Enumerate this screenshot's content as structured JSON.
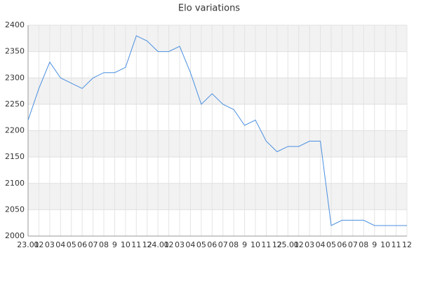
{
  "chart_data": {
    "type": "line",
    "title": "Elo variations",
    "categories": [
      "23.01",
      "02",
      "03",
      "04",
      "05",
      "06",
      "07",
      "08",
      "9",
      "10",
      "11",
      "12",
      "24.01",
      "02",
      "03",
      "04",
      "05",
      "06",
      "07",
      "08",
      "9",
      "10",
      "11",
      "12",
      "25.01",
      "02",
      "03",
      "04",
      "05",
      "06",
      "07",
      "08",
      "9",
      "10",
      "11",
      "12"
    ],
    "series": [
      {
        "name": "Elo",
        "color": "#4a8fe0",
        "values": [
          2220,
          2280,
          2330,
          2300,
          2290,
          2280,
          2300,
          2310,
          2310,
          2320,
          2380,
          2370,
          2350,
          2350,
          2360,
          2310,
          2250,
          2270,
          2250,
          2240,
          2210,
          2220,
          2180,
          2160,
          2170,
          2170,
          2180,
          2180,
          2020,
          2030,
          2030,
          2030,
          2020,
          2020,
          2020,
          2020
        ]
      }
    ],
    "ylim": [
      2000,
      2400
    ],
    "yticks": [
      2000,
      2050,
      2100,
      2150,
      2200,
      2250,
      2300,
      2350,
      2400
    ],
    "grid": true
  }
}
